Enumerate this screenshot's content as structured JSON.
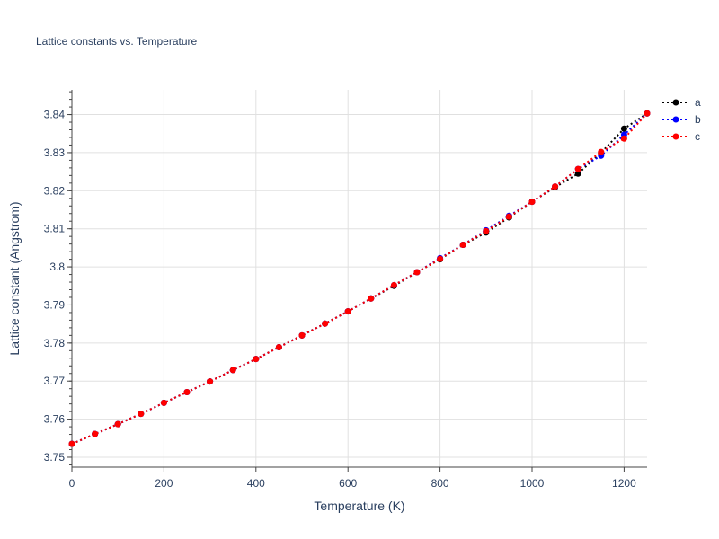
{
  "chart_data": {
    "type": "line",
    "title": "Lattice constants vs. Temperature",
    "xlabel": "Temperature (K)",
    "ylabel": "Lattice constant (Angstrom)",
    "xlim": [
      0,
      1250
    ],
    "ylim": [
      3.7474,
      3.8465
    ],
    "xticks": [
      0,
      200,
      400,
      600,
      800,
      1000,
      1200
    ],
    "yticks": [
      3.75,
      3.76,
      3.77,
      3.78,
      3.79,
      3.8,
      3.81,
      3.82,
      3.83,
      3.84
    ],
    "ytick_labels": [
      "3.75",
      "3.76",
      "3.77",
      "3.78",
      "3.79",
      "3.8",
      "3.81",
      "3.82",
      "3.83",
      "3.84"
    ],
    "grid": true,
    "legend_position": "top-right",
    "x": [
      0,
      50,
      100,
      150,
      200,
      250,
      300,
      350,
      400,
      450,
      500,
      550,
      600,
      650,
      700,
      750,
      800,
      850,
      900,
      950,
      1000,
      1050,
      1100,
      1150,
      1200,
      1250
    ],
    "series": [
      {
        "name": "a",
        "color": "#000000",
        "values": [
          3.7535,
          3.7561,
          3.7587,
          3.7614,
          3.7643,
          3.7671,
          3.7699,
          3.7729,
          3.7758,
          3.7789,
          3.782,
          3.7851,
          3.7883,
          3.7917,
          3.795,
          3.7986,
          3.802,
          3.8058,
          3.809,
          3.813,
          3.8171,
          3.8209,
          3.8245,
          3.83,
          3.8363,
          3.8403
        ]
      },
      {
        "name": "b",
        "color": "#0000ff",
        "values": [
          3.7535,
          3.7561,
          3.7587,
          3.7614,
          3.7643,
          3.7671,
          3.7699,
          3.7729,
          3.7758,
          3.7789,
          3.782,
          3.7851,
          3.7883,
          3.7917,
          3.7952,
          3.7986,
          3.8023,
          3.8058,
          3.8096,
          3.8134,
          3.8171,
          3.8211,
          3.8257,
          3.8292,
          3.8347,
          3.8403
        ]
      },
      {
        "name": "c",
        "color": "#ff0000",
        "values": [
          3.7535,
          3.7561,
          3.7587,
          3.7614,
          3.7643,
          3.7671,
          3.7699,
          3.7729,
          3.7758,
          3.7789,
          3.782,
          3.7851,
          3.7883,
          3.7917,
          3.7952,
          3.7986,
          3.8021,
          3.8058,
          3.8094,
          3.8132,
          3.8171,
          3.8211,
          3.8257,
          3.8302,
          3.8337,
          3.8403
        ]
      }
    ]
  }
}
